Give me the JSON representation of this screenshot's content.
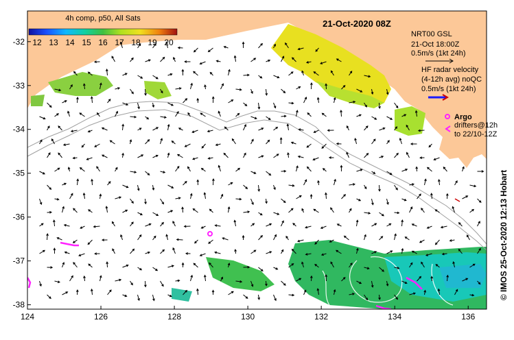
{
  "map": {
    "title": "21-Oct-2020 08Z",
    "colorbar": {
      "title": "4h comp, p50, All Sats",
      "ticks": [
        "12",
        "13",
        "14",
        "15",
        "16",
        "17",
        "18",
        "19",
        "20"
      ],
      "range": [
        11.5,
        20.5
      ]
    },
    "legend": {
      "gsl_title": "NRT00 GSL",
      "gsl_date": "21-Oct 18:00Z",
      "gsl_scale": "0.5m/s (1kt 24h)",
      "radar_title": "HF radar velocity",
      "radar_sub": "(4-12h avg) noQC",
      "radar_scale": "0.5m/s (1kt 24h)",
      "argo_label": "Argo",
      "drifters_line1": "drifters@12h",
      "drifters_line2": "to 22/10-12Z"
    },
    "x_ticks": [
      "124",
      "126",
      "128",
      "130",
      "132",
      "134",
      "136"
    ],
    "y_ticks": [
      "-32",
      "-33",
      "-34",
      "-35",
      "-36",
      "-37",
      "-38"
    ],
    "lon_range": [
      124,
      136.5
    ],
    "lat_range": [
      -38.1,
      -31.3
    ],
    "credit": "© IMOS 25-Oct-2020 12:13 Hobart",
    "colors": {
      "land": "#fcc898",
      "ocean": "#ffffff",
      "argo": "#ff22ff",
      "radar_arrow": "#1a1aff"
    }
  }
}
